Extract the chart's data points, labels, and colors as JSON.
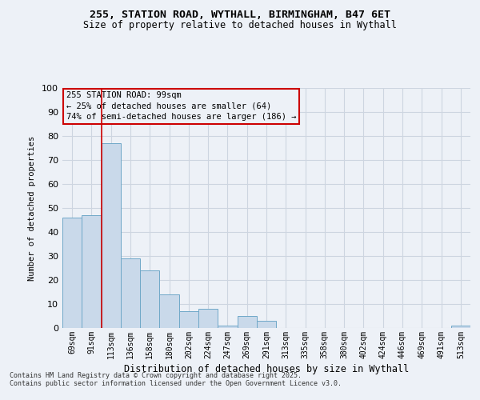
{
  "title1": "255, STATION ROAD, WYTHALL, BIRMINGHAM, B47 6ET",
  "title2": "Size of property relative to detached houses in Wythall",
  "xlabel": "Distribution of detached houses by size in Wythall",
  "ylabel": "Number of detached properties",
  "categories": [
    "69sqm",
    "91sqm",
    "113sqm",
    "136sqm",
    "158sqm",
    "180sqm",
    "202sqm",
    "224sqm",
    "247sqm",
    "269sqm",
    "291sqm",
    "313sqm",
    "335sqm",
    "358sqm",
    "380sqm",
    "402sqm",
    "424sqm",
    "446sqm",
    "469sqm",
    "491sqm",
    "513sqm"
  ],
  "values": [
    46,
    47,
    77,
    29,
    24,
    14,
    7,
    8,
    1,
    5,
    3,
    0,
    0,
    0,
    0,
    0,
    0,
    0,
    0,
    0,
    1
  ],
  "bar_color": "#c9d9ea",
  "bar_edge_color": "#6fa8c8",
  "grid_color": "#cdd5e0",
  "background_color": "#edf1f7",
  "annotation_box_text": "255 STATION ROAD: 99sqm\n← 25% of detached houses are smaller (64)\n74% of semi-detached houses are larger (186) →",
  "annotation_box_color": "#cc0000",
  "vline_x_index": 1.5,
  "ylim": [
    0,
    100
  ],
  "yticks": [
    0,
    10,
    20,
    30,
    40,
    50,
    60,
    70,
    80,
    90,
    100
  ],
  "footnote1": "Contains HM Land Registry data © Crown copyright and database right 2025.",
  "footnote2": "Contains public sector information licensed under the Open Government Licence v3.0."
}
